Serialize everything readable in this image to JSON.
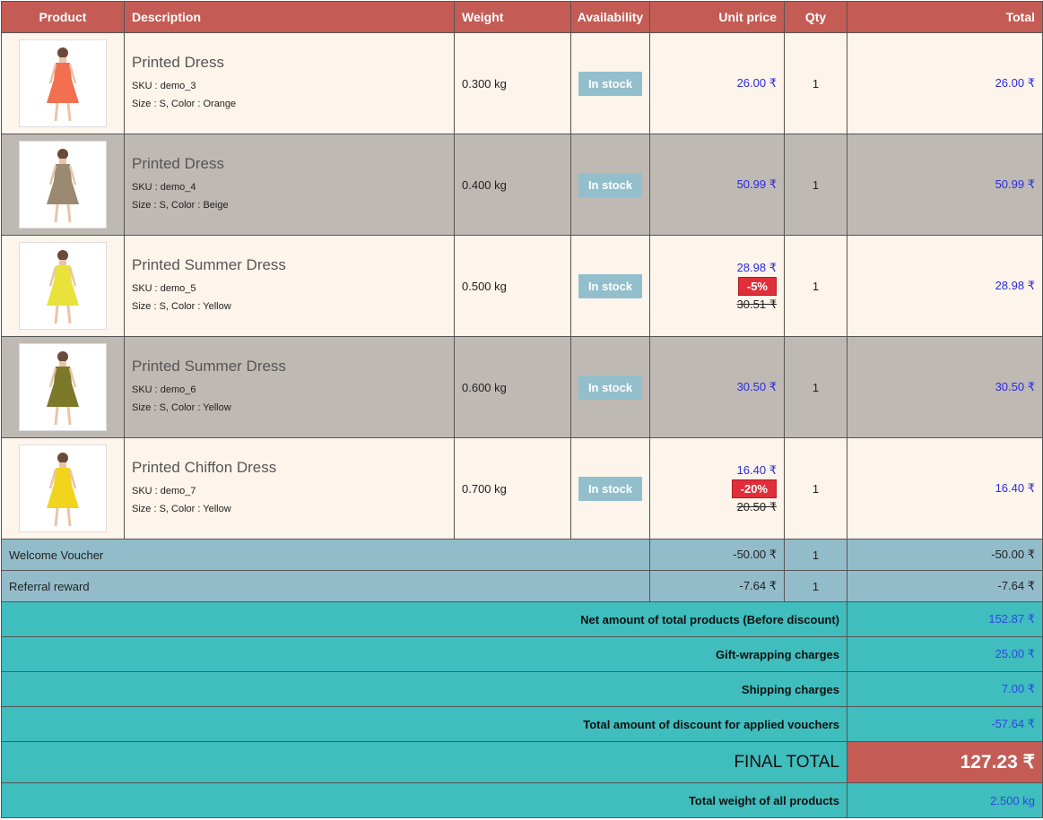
{
  "headers": {
    "product": "Product",
    "description": "Description",
    "weight": "Weight",
    "availability": "Availability",
    "unit_price": "Unit price",
    "qty": "Qty",
    "total": "Total"
  },
  "items": [
    {
      "name": "Printed Dress",
      "sku": "SKU : demo_3",
      "attrs": "Size : S, Color : Orange",
      "weight": "0.300 kg",
      "availability": "In stock",
      "unit_price": "26.00 ₹",
      "discount": "",
      "old_price": "",
      "qty": "1",
      "total": "26.00 ₹",
      "dress_color": "#f26f4f"
    },
    {
      "name": "Printed Dress",
      "sku": "SKU : demo_4",
      "attrs": "Size : S, Color : Beige",
      "weight": "0.400 kg",
      "availability": "In stock",
      "unit_price": "50.99 ₹",
      "discount": "",
      "old_price": "",
      "qty": "1",
      "total": "50.99 ₹",
      "dress_color": "#9a8a72"
    },
    {
      "name": "Printed Summer Dress",
      "sku": "SKU : demo_5",
      "attrs": "Size : S, Color : Yellow",
      "weight": "0.500 kg",
      "availability": "In stock",
      "unit_price": "28.98 ₹",
      "discount": "-5%",
      "old_price": "30.51 ₹",
      "qty": "1",
      "total": "28.98 ₹",
      "dress_color": "#e8e23a"
    },
    {
      "name": "Printed Summer Dress",
      "sku": "SKU : demo_6",
      "attrs": "Size : S, Color : Yellow",
      "weight": "0.600 kg",
      "availability": "In stock",
      "unit_price": "30.50 ₹",
      "discount": "",
      "old_price": "",
      "qty": "1",
      "total": "30.50 ₹",
      "dress_color": "#7c7a2a"
    },
    {
      "name": "Printed Chiffon Dress",
      "sku": "SKU : demo_7",
      "attrs": "Size : S, Color : Yellow",
      "weight": "0.700 kg",
      "availability": "In stock",
      "unit_price": "16.40 ₹",
      "discount": "-20%",
      "old_price": "20.50 ₹",
      "qty": "1",
      "total": "16.40 ₹",
      "dress_color": "#f1d41e"
    }
  ],
  "vouchers": [
    {
      "label": "Welcome Voucher",
      "unit_price": "-50.00 ₹",
      "qty": "1",
      "total": "-50.00 ₹"
    },
    {
      "label": "Referral reward",
      "unit_price": "-7.64 ₹",
      "qty": "1",
      "total": "-7.64 ₹"
    }
  ],
  "summary": {
    "net_label": "Net amount of total products (Before discount)",
    "net_value": "152.87 ₹",
    "gift_label": "Gift-wrapping charges",
    "gift_value": "25.00 ₹",
    "shipping_label": "Shipping charges",
    "shipping_value": "7.00 ₹",
    "discount_label": "Total amount of discount for applied vouchers",
    "discount_value": "-57.64 ₹",
    "final_label": "FINAL TOTAL",
    "final_value": "127.23 ₹",
    "weight_label": "Total weight of all products",
    "weight_value": "2.500 kg"
  },
  "colors": {
    "header": "#c45c55",
    "row_odd": "#fdf4eb",
    "row_even": "#bfb9b4",
    "voucher_row": "#93bcca",
    "summary_row": "#40bdbd",
    "stock_badge": "#93bfcc",
    "discount_badge": "#e02f3a",
    "price_text": "#2a2ae0"
  }
}
